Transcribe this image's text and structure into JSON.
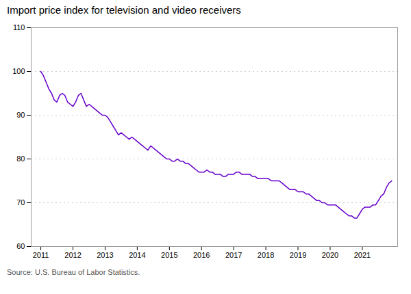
{
  "chart_data": {
    "type": "line",
    "title": "Import price index for television and video receivers",
    "source": "Source: U.S. Bureau of Labor Statistics.",
    "color": "#6600cc",
    "grid": true,
    "xlim": [
      2010.7,
      2022.1
    ],
    "xticks": [
      2011,
      2012,
      2013,
      2014,
      2015,
      2016,
      2017,
      2018,
      2019,
      2020,
      2021
    ],
    "ylim": [
      60,
      110
    ],
    "yticks": [
      60,
      70,
      80,
      90,
      100,
      110
    ],
    "x": [
      2011.0,
      2011.083,
      2011.167,
      2011.25,
      2011.333,
      2011.417,
      2011.5,
      2011.583,
      2011.667,
      2011.75,
      2011.833,
      2011.917,
      2012.0,
      2012.083,
      2012.167,
      2012.25,
      2012.333,
      2012.417,
      2012.5,
      2012.583,
      2012.667,
      2012.75,
      2012.833,
      2012.917,
      2013.0,
      2013.083,
      2013.167,
      2013.25,
      2013.333,
      2013.417,
      2013.5,
      2013.583,
      2013.667,
      2013.75,
      2013.833,
      2013.917,
      2014.0,
      2014.083,
      2014.167,
      2014.25,
      2014.333,
      2014.417,
      2014.5,
      2014.583,
      2014.667,
      2014.75,
      2014.833,
      2014.917,
      2015.0,
      2015.083,
      2015.167,
      2015.25,
      2015.333,
      2015.417,
      2015.5,
      2015.583,
      2015.667,
      2015.75,
      2015.833,
      2015.917,
      2016.0,
      2016.083,
      2016.167,
      2016.25,
      2016.333,
      2016.417,
      2016.5,
      2016.583,
      2016.667,
      2016.75,
      2016.833,
      2016.917,
      2017.0,
      2017.083,
      2017.167,
      2017.25,
      2017.333,
      2017.417,
      2017.5,
      2017.583,
      2017.667,
      2017.75,
      2017.833,
      2017.917,
      2018.0,
      2018.083,
      2018.167,
      2018.25,
      2018.333,
      2018.417,
      2018.5,
      2018.583,
      2018.667,
      2018.75,
      2018.833,
      2018.917,
      2019.0,
      2019.083,
      2019.167,
      2019.25,
      2019.333,
      2019.417,
      2019.5,
      2019.583,
      2019.667,
      2019.75,
      2019.833,
      2019.917,
      2020.0,
      2020.083,
      2020.167,
      2020.25,
      2020.333,
      2020.417,
      2020.5,
      2020.583,
      2020.667,
      2020.75,
      2020.833,
      2020.917,
      2021.0,
      2021.083,
      2021.167,
      2021.25,
      2021.333,
      2021.417,
      2021.5,
      2021.583,
      2021.667,
      2021.75,
      2021.833,
      2021.917
    ],
    "values": [
      100.0,
      99.0,
      97.5,
      96.0,
      95.0,
      93.5,
      93.0,
      94.5,
      95.0,
      94.5,
      93.0,
      92.5,
      92.0,
      93.0,
      94.5,
      95.0,
      93.5,
      92.0,
      92.5,
      92.0,
      91.5,
      91.0,
      90.5,
      90.0,
      90.0,
      89.5,
      88.5,
      87.5,
      86.5,
      85.5,
      86.0,
      85.5,
      85.0,
      84.5,
      85.0,
      84.5,
      84.0,
      83.5,
      83.0,
      82.5,
      82.0,
      83.0,
      82.5,
      82.0,
      81.5,
      81.0,
      80.5,
      80.0,
      80.0,
      79.5,
      79.5,
      80.0,
      79.5,
      79.5,
      79.0,
      79.0,
      78.5,
      78.0,
      77.5,
      77.0,
      77.0,
      77.0,
      77.5,
      77.0,
      77.0,
      76.5,
      76.5,
      76.5,
      76.0,
      76.0,
      76.5,
      76.5,
      76.5,
      77.0,
      77.0,
      76.5,
      76.5,
      76.5,
      76.5,
      76.0,
      76.0,
      75.5,
      75.5,
      75.5,
      75.5,
      75.5,
      75.0,
      75.0,
      75.0,
      75.0,
      74.5,
      74.0,
      73.5,
      73.0,
      73.0,
      73.0,
      72.5,
      72.5,
      72.5,
      72.0,
      72.0,
      71.5,
      71.0,
      70.5,
      70.5,
      70.0,
      70.0,
      69.5,
      69.5,
      69.5,
      69.5,
      69.0,
      68.5,
      68.0,
      67.5,
      67.0,
      67.0,
      66.5,
      66.5,
      67.5,
      68.5,
      69.0,
      69.0,
      69.0,
      69.5,
      69.5,
      70.5,
      71.5,
      72.0,
      73.5,
      74.5,
      75.0
    ]
  }
}
